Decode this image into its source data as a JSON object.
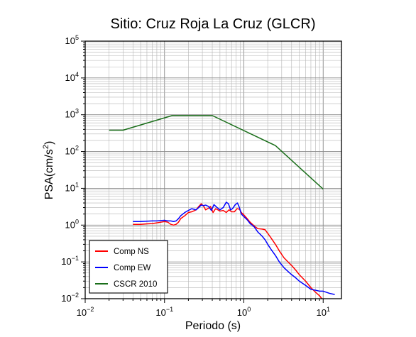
{
  "chart_data": {
    "type": "line",
    "title": "Sitio: Cruz Roja La Cruz (GLCR)",
    "xlabel": "Periodo (s)",
    "ylabel_base": "PSA(cm/s",
    "ylabel_sup": "2",
    "ylabel_end": ")",
    "x_scale": "log",
    "y_scale": "log",
    "xlim": [
      0.01,
      17
    ],
    "ylim": [
      0.01,
      100000
    ],
    "grid": true,
    "legend_position": "bottom-left",
    "x_ticks": [
      {
        "value": 0.01,
        "base": "10",
        "exp": "−2"
      },
      {
        "value": 0.1,
        "base": "10",
        "exp": "−1"
      },
      {
        "value": 1,
        "base": "10",
        "exp": "0"
      },
      {
        "value": 10,
        "base": "10",
        "exp": "1"
      }
    ],
    "y_ticks": [
      {
        "value": 0.01,
        "base": "10",
        "exp": "−2"
      },
      {
        "value": 0.1,
        "base": "10",
        "exp": "−1"
      },
      {
        "value": 1,
        "base": "10",
        "exp": "0"
      },
      {
        "value": 10,
        "base": "10",
        "exp": "1"
      },
      {
        "value": 100,
        "base": "10",
        "exp": "2"
      },
      {
        "value": 1000,
        "base": "10",
        "exp": "3"
      },
      {
        "value": 10000,
        "base": "10",
        "exp": "4"
      },
      {
        "value": 100000,
        "base": "10",
        "exp": "5"
      }
    ],
    "series": [
      {
        "name": "Comp NS",
        "color": "#ff0000",
        "points": [
          [
            0.04,
            1.05
          ],
          [
            0.05,
            1.05
          ],
          [
            0.06,
            1.08
          ],
          [
            0.07,
            1.1
          ],
          [
            0.08,
            1.15
          ],
          [
            0.09,
            1.2
          ],
          [
            0.1,
            1.25
          ],
          [
            0.11,
            1.2
          ],
          [
            0.12,
            1.05
          ],
          [
            0.13,
            1.0
          ],
          [
            0.14,
            1.05
          ],
          [
            0.15,
            1.2
          ],
          [
            0.16,
            1.5
          ],
          [
            0.18,
            1.8
          ],
          [
            0.2,
            2.2
          ],
          [
            0.22,
            2.3
          ],
          [
            0.25,
            2.6
          ],
          [
            0.27,
            3.2
          ],
          [
            0.29,
            3.8
          ],
          [
            0.31,
            3.3
          ],
          [
            0.33,
            2.6
          ],
          [
            0.36,
            2.9
          ],
          [
            0.38,
            3.2
          ],
          [
            0.41,
            2.2
          ],
          [
            0.44,
            2.8
          ],
          [
            0.47,
            2.6
          ],
          [
            0.5,
            2.4
          ],
          [
            0.55,
            2.5
          ],
          [
            0.6,
            2.2
          ],
          [
            0.65,
            2.6
          ],
          [
            0.7,
            2.3
          ],
          [
            0.76,
            2.3
          ],
          [
            0.82,
            2.8
          ],
          [
            0.88,
            2.7
          ],
          [
            0.93,
            2.2
          ],
          [
            1.0,
            1.9
          ],
          [
            1.1,
            1.5
          ],
          [
            1.2,
            1.2
          ],
          [
            1.35,
            0.95
          ],
          [
            1.5,
            0.8
          ],
          [
            1.7,
            0.78
          ],
          [
            1.85,
            0.75
          ],
          [
            2.0,
            0.6
          ],
          [
            2.2,
            0.45
          ],
          [
            2.5,
            0.3
          ],
          [
            2.8,
            0.2
          ],
          [
            3.2,
            0.13
          ],
          [
            3.6,
            0.1
          ],
          [
            4.0,
            0.08
          ],
          [
            4.5,
            0.06
          ],
          [
            5.0,
            0.045
          ],
          [
            6.0,
            0.03
          ],
          [
            7.0,
            0.02
          ],
          [
            8.0,
            0.015
          ],
          [
            9.0,
            0.012
          ],
          [
            10.0,
            0.009
          ]
        ]
      },
      {
        "name": "Comp EW",
        "color": "#0000ff",
        "points": [
          [
            0.04,
            1.25
          ],
          [
            0.05,
            1.25
          ],
          [
            0.06,
            1.28
          ],
          [
            0.07,
            1.3
          ],
          [
            0.08,
            1.3
          ],
          [
            0.09,
            1.33
          ],
          [
            0.1,
            1.35
          ],
          [
            0.11,
            1.3
          ],
          [
            0.12,
            1.3
          ],
          [
            0.13,
            1.25
          ],
          [
            0.14,
            1.3
          ],
          [
            0.15,
            1.5
          ],
          [
            0.16,
            1.8
          ],
          [
            0.18,
            2.2
          ],
          [
            0.2,
            2.5
          ],
          [
            0.22,
            2.8
          ],
          [
            0.25,
            2.6
          ],
          [
            0.27,
            3.0
          ],
          [
            0.29,
            3.5
          ],
          [
            0.31,
            3.4
          ],
          [
            0.33,
            3.5
          ],
          [
            0.36,
            3.2
          ],
          [
            0.39,
            2.5
          ],
          [
            0.42,
            3.6
          ],
          [
            0.46,
            3.0
          ],
          [
            0.5,
            2.6
          ],
          [
            0.55,
            3.0
          ],
          [
            0.6,
            4.2
          ],
          [
            0.64,
            3.8
          ],
          [
            0.68,
            2.6
          ],
          [
            0.72,
            2.8
          ],
          [
            0.78,
            3.6
          ],
          [
            0.83,
            4.0
          ],
          [
            0.88,
            3.0
          ],
          [
            0.93,
            2.0
          ],
          [
            1.0,
            1.7
          ],
          [
            1.1,
            1.4
          ],
          [
            1.2,
            1.1
          ],
          [
            1.35,
            0.9
          ],
          [
            1.5,
            0.65
          ],
          [
            1.7,
            0.5
          ],
          [
            1.85,
            0.4
          ],
          [
            2.0,
            0.3
          ],
          [
            2.2,
            0.22
          ],
          [
            2.5,
            0.15
          ],
          [
            2.8,
            0.1
          ],
          [
            3.2,
            0.07
          ],
          [
            3.6,
            0.055
          ],
          [
            4.0,
            0.045
          ],
          [
            4.5,
            0.037
          ],
          [
            5.0,
            0.03
          ],
          [
            6.0,
            0.023
          ],
          [
            7.0,
            0.018
          ],
          [
            8.0,
            0.017
          ],
          [
            9.0,
            0.016
          ],
          [
            10.0,
            0.016
          ],
          [
            12.0,
            0.014
          ],
          [
            14.0,
            0.013
          ]
        ]
      },
      {
        "name": "CSCR 2010",
        "color": "#1a6e1a",
        "points": [
          [
            0.02,
            380
          ],
          [
            0.03,
            380
          ],
          [
            0.125,
            950
          ],
          [
            0.4,
            950
          ],
          [
            2.5,
            145
          ],
          [
            10.0,
            9.5
          ]
        ]
      }
    ]
  }
}
